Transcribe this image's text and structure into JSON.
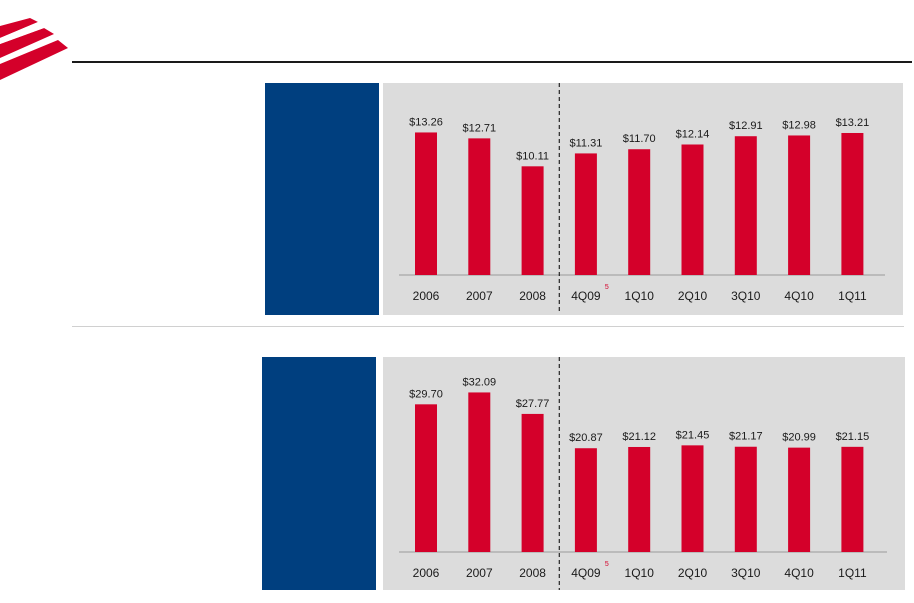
{
  "brand": {
    "accent": "#d4002a",
    "navy": "#003f7f",
    "panel_bg": "#dcdcdc"
  },
  "icons": {
    "logo": "flagscape-logo-icon"
  },
  "chart_data": [
    {
      "type": "bar",
      "categories": [
        "2006",
        "2007",
        "2008",
        "4Q09",
        "1Q10",
        "2Q10",
        "3Q10",
        "4Q10",
        "1Q11"
      ],
      "values": [
        13.26,
        12.71,
        10.11,
        11.31,
        11.7,
        12.14,
        12.91,
        12.98,
        13.21
      ],
      "data_labels": [
        "$13.26",
        "$12.71",
        "$10.11",
        "$11.31",
        "$11.70",
        "$12.14",
        "$12.91",
        "$12.98",
        "$13.21"
      ],
      "footnote": {
        "category": "4Q09",
        "text": "5"
      },
      "divider_after": "2008",
      "ylim": [
        0,
        16
      ],
      "grid": false,
      "color": "#d4002a"
    },
    {
      "type": "bar",
      "categories": [
        "2006",
        "2007",
        "2008",
        "4Q09",
        "1Q10",
        "2Q10",
        "3Q10",
        "4Q10",
        "1Q11"
      ],
      "values": [
        29.7,
        32.09,
        27.77,
        20.87,
        21.12,
        21.45,
        21.17,
        20.99,
        21.15
      ],
      "data_labels": [
        "$29.70",
        "$32.09",
        "$27.77",
        "$20.87",
        "$21.12",
        "$21.45",
        "$21.17",
        "$20.99",
        "$21.15"
      ],
      "footnote": {
        "category": "4Q09",
        "text": "5"
      },
      "divider_after": "2008",
      "ylim": [
        0,
        36
      ],
      "grid": false,
      "color": "#d4002a"
    }
  ]
}
